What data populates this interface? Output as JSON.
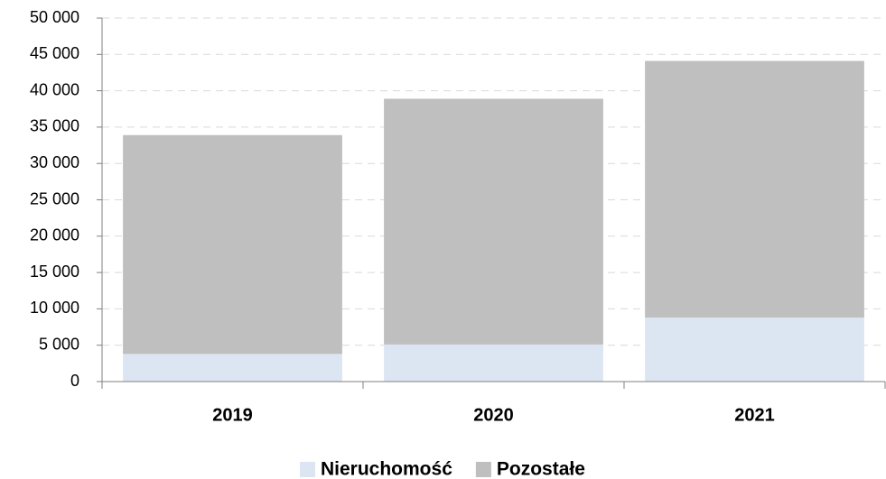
{
  "chart_data": {
    "type": "stacked_bar",
    "categories": [
      "2019",
      "2020",
      "2021"
    ],
    "series": [
      {
        "name": "Nieruchomość",
        "color": "#dce6f2",
        "values": [
          3800,
          5100,
          8800
        ]
      },
      {
        "name": "Pozostałe",
        "color": "#bfbfbf",
        "values": [
          30100,
          33800,
          35300
        ]
      }
    ],
    "ylim": [
      0,
      50000
    ],
    "yticks": [
      0,
      {
        "value": 5000,
        "label": "5 000"
      },
      {
        "value": 10000,
        "label": "10 000"
      },
      {
        "value": 15000,
        "label": "15 000"
      },
      {
        "value": 20000,
        "label": "20 000"
      },
      {
        "value": 25000,
        "label": "25 000"
      },
      {
        "value": 30000,
        "label": "30 000"
      },
      {
        "value": 35000,
        "label": "35 000"
      },
      {
        "value": 40000,
        "label": "40 000"
      },
      {
        "value": 45000,
        "label": "45 000"
      },
      {
        "value": 50000,
        "label": "50 000"
      }
    ],
    "grid": true,
    "legend": "bottom"
  }
}
